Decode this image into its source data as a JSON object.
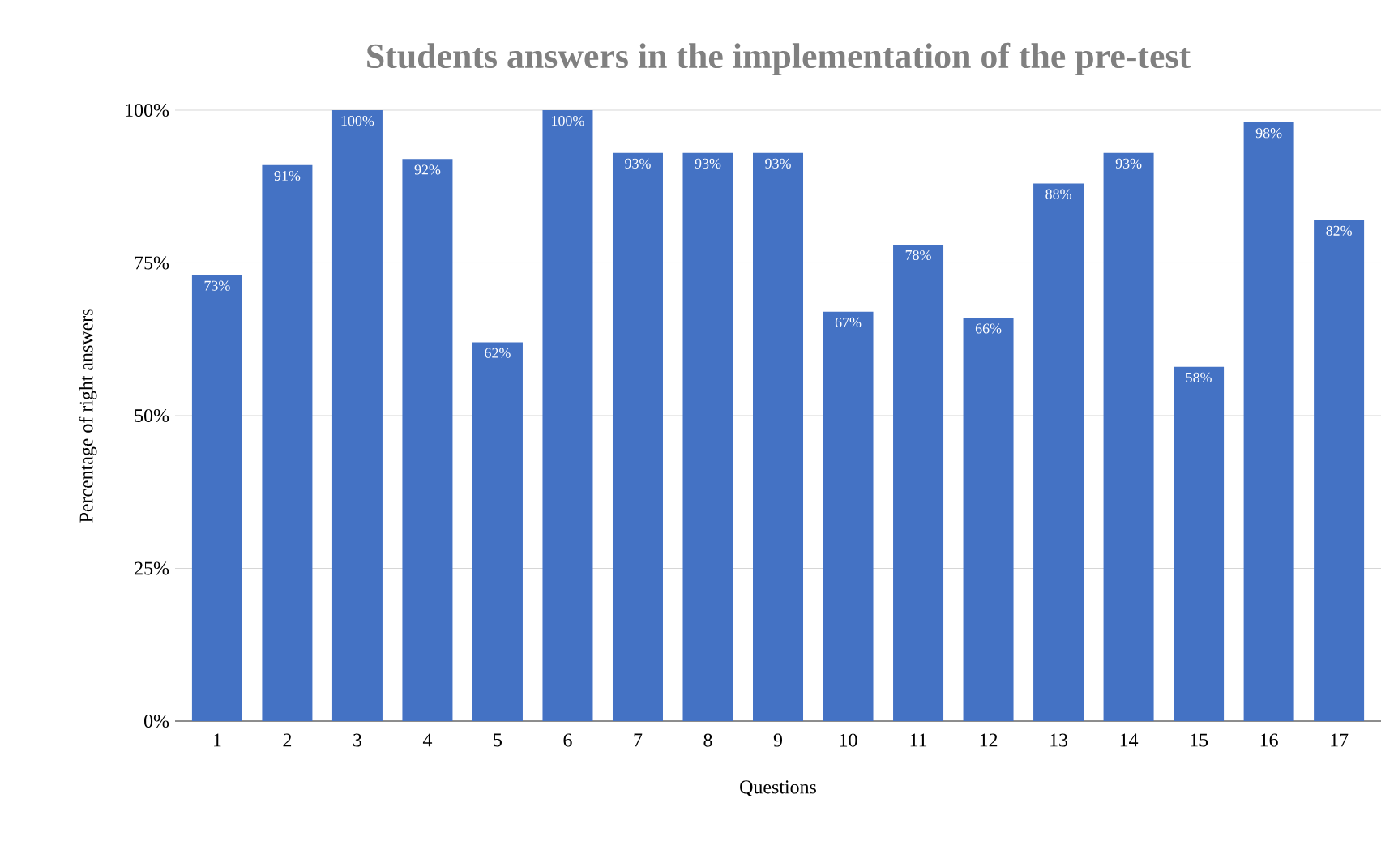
{
  "chart_data": {
    "type": "bar",
    "title": "Students answers in the implementation of the pre-test",
    "xlabel": "Questions",
    "ylabel": "Percentage of right answers",
    "categories": [
      "1",
      "2",
      "3",
      "4",
      "5",
      "6",
      "7",
      "8",
      "9",
      "10",
      "11",
      "12",
      "13",
      "14",
      "15",
      "16",
      "17"
    ],
    "values": [
      73,
      91,
      100,
      92,
      62,
      100,
      93,
      93,
      93,
      67,
      78,
      66,
      88,
      93,
      58,
      98,
      82
    ],
    "value_labels": [
      "73%",
      "91%",
      "100%",
      "92%",
      "62%",
      "100%",
      "93%",
      "93%",
      "93%",
      "67%",
      "78%",
      "66%",
      "88%",
      "93%",
      "58%",
      "98%",
      "82%"
    ],
    "color": "#4472c4",
    "ylim": [
      0,
      100
    ],
    "yticks": [
      {
        "value": 0,
        "label": "0%"
      },
      {
        "value": 25,
        "label": "25%"
      },
      {
        "value": 50,
        "label": "50%"
      },
      {
        "value": 75,
        "label": "75%"
      },
      {
        "value": 100,
        "label": "100%"
      }
    ],
    "grid": "y"
  }
}
